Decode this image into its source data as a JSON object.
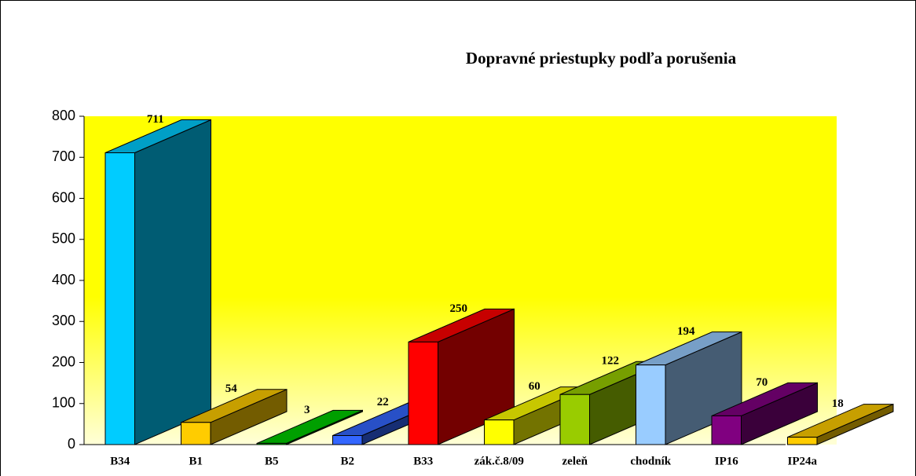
{
  "chart_data": {
    "type": "bar3d",
    "title": "Dopravné priestupky podľa porušenia",
    "categories": [
      "B34",
      "B1",
      "B5",
      "B2",
      "B33",
      "zák.č.8/09",
      "zeleň",
      "chodník",
      "IP16",
      "IP24a"
    ],
    "values": [
      711,
      54,
      3,
      22,
      250,
      60,
      122,
      194,
      70,
      18
    ],
    "colors": [
      "#00ccff",
      "#ffcc00",
      "#00cc00",
      "#3366ff",
      "#ff0000",
      "#ffff00",
      "#99cc00",
      "#99ccff",
      "#800080",
      "#ffcc00"
    ],
    "ylim": [
      0,
      800
    ],
    "yticks": [
      0,
      100,
      200,
      300,
      400,
      500,
      600,
      700,
      800
    ]
  }
}
